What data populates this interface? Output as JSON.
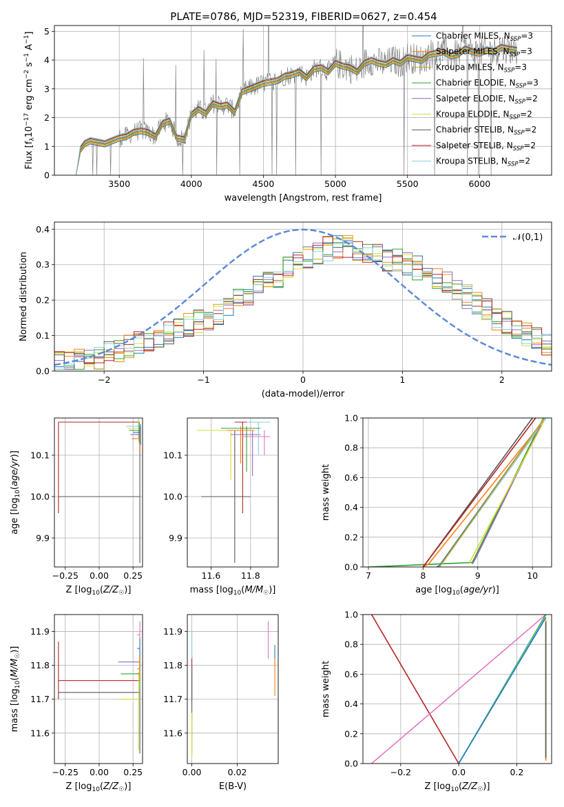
{
  "figure_title": "PLATE=0786, MJD=52319, FIBERID=0627, z=0.454",
  "colors": {
    "Chabrier MILES": "#1f77b4",
    "Salpeter MILES": "#ff7f0e",
    "Kroupa MILES": "#d4a017",
    "Chabrier ELODIE": "#2ca02c",
    "Salpeter ELODIE": "#9467bd",
    "Kroupa ELODIE": "#dbdb36",
    "Chabrier STELIB": "#555555",
    "Salpeter STELIB": "#b22222",
    "Kroupa STELIB": "#80cfe0",
    "pink": "#e377c2",
    "normal": "#5b8bd8",
    "data_gray": "#808080"
  },
  "chart_data": [
    {
      "type": "line",
      "title": "PLATE=0786, MJD=52319, FIBERID=0627, z=0.454",
      "xlabel": "wavelength [Angstrom, rest frame]",
      "ylabel": "Flux [f_λ 10^-17 erg cm^-2 s^-1 A^-1]",
      "xlim": [
        3050,
        6500
      ],
      "ylim": [
        0,
        5.2
      ],
      "xticks": [
        3500,
        4000,
        4500,
        5000,
        5500,
        6000
      ],
      "yticks": [
        0,
        1,
        2,
        3,
        4,
        5
      ],
      "legend_position": "top-right",
      "legend": [
        "Chabrier MILES, N_SSP=3",
        "Salpeter MILES, N_SSP=3",
        "Kroupa MILES, N_SSP=3",
        "Chabrier ELODIE, N_SSP=3",
        "Salpeter ELODIE, N_SSP=2",
        "Kroupa ELODIE, N_SSP=2",
        "Chabrier STELIB, N_SSP=2",
        "Salpeter STELIB, N_SSP=2",
        "Kroupa STELIB, N_SSP=2"
      ],
      "model_continuum": {
        "x": [
          3200,
          3230,
          3260,
          3300,
          3350,
          3400,
          3450,
          3500,
          3550,
          3600,
          3650,
          3700,
          3750,
          3800,
          3850,
          3900,
          3950,
          4000,
          4050,
          4100,
          4150,
          4200,
          4250,
          4300,
          4350,
          4400,
          4450,
          4500,
          4550,
          4600,
          4650,
          4700,
          4750,
          4800,
          4850,
          4900,
          4950,
          5000,
          5050,
          5100,
          5150,
          5200,
          5250,
          5300,
          5350,
          5400,
          5450,
          5500,
          5550,
          5600,
          5650,
          5700,
          5750,
          5800,
          5850,
          5900,
          5950,
          6000,
          6050,
          6100,
          6150,
          6200,
          6260
        ],
        "y": [
          0.0,
          0.9,
          1.1,
          1.2,
          1.15,
          1.1,
          1.2,
          1.3,
          1.35,
          1.5,
          1.55,
          1.5,
          1.35,
          1.8,
          1.9,
          1.3,
          1.25,
          2.1,
          2.3,
          2.15,
          2.5,
          2.4,
          2.45,
          2.2,
          2.9,
          3.0,
          3.1,
          3.2,
          3.25,
          3.3,
          3.45,
          3.5,
          3.6,
          3.4,
          3.7,
          3.75,
          3.6,
          3.9,
          3.8,
          3.75,
          3.6,
          3.9,
          4.0,
          3.9,
          3.85,
          4.0,
          3.9,
          4.1,
          4.05,
          4.0,
          4.2,
          4.25,
          4.3,
          4.15,
          4.2,
          4.4,
          4.3,
          4.25,
          4.35,
          4.3,
          4.45,
          4.4,
          4.35
        ]
      }
    },
    {
      "type": "line",
      "xlabel": "(data-model)/error",
      "ylabel": "Normed distribution",
      "xlim": [
        -2.5,
        2.5
      ],
      "ylim": [
        0,
        0.42
      ],
      "xticks": [
        -2,
        -1,
        0,
        1,
        2
      ],
      "yticks": [
        0.0,
        0.1,
        0.2,
        0.3,
        0.4
      ],
      "legend": [
        "𝒩(0,1)"
      ],
      "legend_position": "top-right",
      "histogram_bins": {
        "start": -2.5,
        "width": 0.1,
        "count": 50
      },
      "histogram_mean": [
        0.02,
        0.025,
        0.03,
        0.035,
        0.04,
        0.05,
        0.06,
        0.07,
        0.08,
        0.09,
        0.1,
        0.11,
        0.12,
        0.13,
        0.14,
        0.15,
        0.165,
        0.18,
        0.2,
        0.22,
        0.24,
        0.26,
        0.27,
        0.29,
        0.3,
        0.32,
        0.33,
        0.345,
        0.35,
        0.35,
        0.34,
        0.33,
        0.325,
        0.315,
        0.31,
        0.3,
        0.29,
        0.28,
        0.265,
        0.25,
        0.23,
        0.21,
        0.19,
        0.17,
        0.15,
        0.135,
        0.12,
        0.105,
        0.09,
        0.08
      ]
    },
    {
      "type": "scatter",
      "xlabel": "Z [log10(Z/Z☉)]",
      "ylabel": "age  [log10(age/yr)]",
      "xlim": [
        -0.33,
        0.32
      ],
      "ylim": [
        9.83,
        10.19
      ],
      "xticks": [
        -0.25,
        0.0,
        0.25
      ],
      "yticks": [
        9.9,
        10.0,
        10.1
      ]
    },
    {
      "type": "scatter",
      "xlabel": "mass [log10(M/M☉)]",
      "xlim": [
        11.48,
        11.94
      ],
      "ylim": [
        9.83,
        10.19
      ],
      "xticks": [
        11.6,
        11.8
      ],
      "yticks": [
        9.9,
        10.0,
        10.1
      ]
    },
    {
      "type": "line",
      "xlabel": "age  [log10(age/yr)]",
      "ylabel": "mass weight",
      "xlim": [
        6.9,
        10.35
      ],
      "ylim": [
        0,
        1.0
      ],
      "xticks": [
        7,
        8,
        9,
        10
      ],
      "yticks": [
        0.0,
        0.2,
        0.4,
        0.6,
        0.8,
        1.0
      ]
    },
    {
      "type": "scatter",
      "xlabel": "Z [log10(Z/Z☉)]",
      "ylabel": "mass [log10(M/M☉)]",
      "xlim": [
        -0.33,
        0.32
      ],
      "ylim": [
        11.51,
        11.95
      ],
      "xticks": [
        -0.25,
        0.0,
        0.25
      ],
      "yticks": [
        11.6,
        11.7,
        11.8,
        11.9
      ]
    },
    {
      "type": "scatter",
      "xlabel": "E(B-V)",
      "xlim": [
        -0.002,
        0.038
      ],
      "ylim": [
        11.51,
        11.95
      ],
      "xticks": [
        0.0,
        0.02
      ],
      "yticks": [
        11.6,
        11.7,
        11.8,
        11.9
      ]
    },
    {
      "type": "line",
      "xlabel": "Z [log10(Z/Z☉)]",
      "ylabel": "mass weight",
      "xlim": [
        -0.33,
        0.32
      ],
      "ylim": [
        0,
        1.0
      ],
      "xticks": [
        -0.2,
        0.0,
        0.2
      ],
      "yticks": [
        0.0,
        0.2,
        0.4,
        0.6,
        0.8,
        1.0
      ]
    }
  ]
}
